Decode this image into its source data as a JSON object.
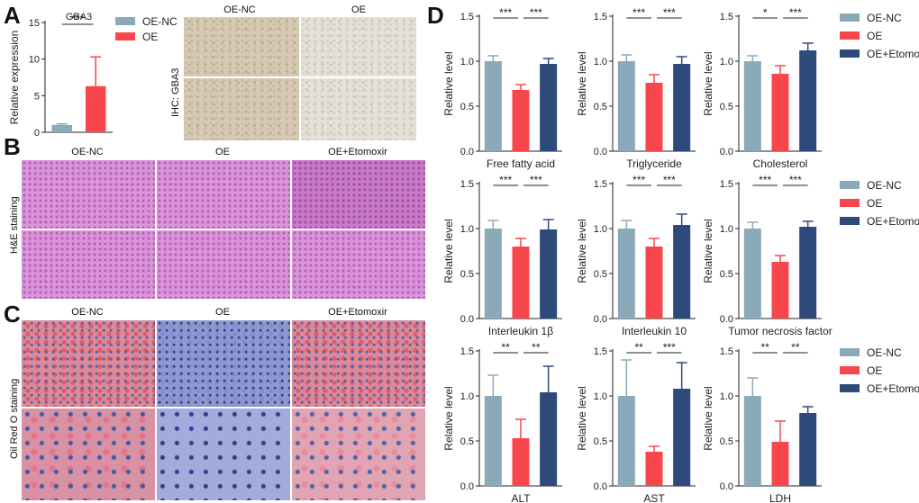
{
  "panels": {
    "A": "A",
    "B": "B",
    "C": "C",
    "D": "D"
  },
  "colors": {
    "oe_nc": "#8aa9b9",
    "oe": "#f7474c",
    "oe_etomoxir": "#2e4a7a"
  },
  "legend": [
    "OE-NC",
    "OE",
    "OE+Etomoxir"
  ],
  "panelA": {
    "ihc_labels": [
      "OE-NC",
      "OE"
    ],
    "ihc_side_label": "IHC: GBA3"
  },
  "panelB": {
    "col_labels": [
      "OE-NC",
      "OE",
      "OE+Etomoxir"
    ],
    "side_label": "H&E staining"
  },
  "panelC": {
    "col_labels": [
      "OE-NC",
      "OE",
      "OE+Etomoxir"
    ],
    "side_label": "Oil Red O staining"
  },
  "chart_data": [
    {
      "id": "A",
      "type": "bar",
      "title": "GBA3",
      "ylabel": "Relative expression",
      "xlabel": "",
      "ylim": [
        0,
        15
      ],
      "yticks": [
        0,
        5,
        10,
        15
      ],
      "categories": [
        "OE-NC",
        "OE"
      ],
      "values": [
        1.0,
        6.3
      ],
      "errors": [
        0.15,
        4.0
      ],
      "significance": [
        {
          "from": 0,
          "to": 1,
          "label": "***"
        }
      ],
      "legend": [
        "OE-NC",
        "OE"
      ],
      "legend_position": "top-right"
    },
    {
      "id": "D1",
      "type": "bar",
      "xlabel": "Free fatty acid",
      "ylabel": "Relative level",
      "ylim": [
        0,
        1.5
      ],
      "yticks": [
        0.0,
        0.5,
        1.0,
        1.5
      ],
      "categories": [
        "OE-NC",
        "OE",
        "OE+Etomoxir"
      ],
      "values": [
        1.0,
        0.68,
        0.97
      ],
      "errors": [
        0.06,
        0.06,
        0.06
      ],
      "significance": [
        {
          "from": 0,
          "to": 1,
          "label": "***"
        },
        {
          "from": 1,
          "to": 2,
          "label": "***"
        }
      ]
    },
    {
      "id": "D2",
      "type": "bar",
      "xlabel": "Triglyceride",
      "ylabel": "Relative level",
      "ylim": [
        0,
        1.5
      ],
      "yticks": [
        0.0,
        0.5,
        1.0,
        1.5
      ],
      "categories": [
        "OE-NC",
        "OE",
        "OE+Etomoxir"
      ],
      "values": [
        1.0,
        0.76,
        0.97
      ],
      "errors": [
        0.07,
        0.09,
        0.08
      ],
      "significance": [
        {
          "from": 0,
          "to": 1,
          "label": "***"
        },
        {
          "from": 1,
          "to": 2,
          "label": "***"
        }
      ]
    },
    {
      "id": "D3",
      "type": "bar",
      "xlabel": "Cholesterol",
      "ylabel": "Relative level",
      "ylim": [
        0,
        1.5
      ],
      "yticks": [
        0.0,
        0.5,
        1.0,
        1.5
      ],
      "categories": [
        "OE-NC",
        "OE",
        "OE+Etomoxir"
      ],
      "values": [
        1.0,
        0.86,
        1.12
      ],
      "errors": [
        0.06,
        0.09,
        0.08
      ],
      "significance": [
        {
          "from": 0,
          "to": 1,
          "label": "*"
        },
        {
          "from": 1,
          "to": 2,
          "label": "***"
        }
      ],
      "legend": [
        "OE-NC",
        "OE",
        "OE+Etomoxir"
      ],
      "legend_position": "right"
    },
    {
      "id": "D4",
      "type": "bar",
      "xlabel": "Interleukin 1β",
      "ylabel": "Relative level",
      "ylim": [
        0,
        1.5
      ],
      "yticks": [
        0.0,
        0.5,
        1.0,
        1.5
      ],
      "categories": [
        "OE-NC",
        "OE",
        "OE+Etomoxir"
      ],
      "values": [
        1.0,
        0.8,
        0.99
      ],
      "errors": [
        0.09,
        0.09,
        0.11
      ],
      "significance": [
        {
          "from": 0,
          "to": 1,
          "label": "***"
        },
        {
          "from": 1,
          "to": 2,
          "label": "***"
        }
      ]
    },
    {
      "id": "D5",
      "type": "bar",
      "xlabel": "Interleukin 10",
      "ylabel": "Relative level",
      "ylim": [
        0,
        1.5
      ],
      "yticks": [
        0.0,
        0.5,
        1.0,
        1.5
      ],
      "categories": [
        "OE-NC",
        "OE",
        "OE+Etomoxir"
      ],
      "values": [
        1.0,
        0.8,
        1.04
      ],
      "errors": [
        0.09,
        0.09,
        0.12
      ],
      "significance": [
        {
          "from": 0,
          "to": 1,
          "label": "***"
        },
        {
          "from": 1,
          "to": 2,
          "label": "***"
        }
      ]
    },
    {
      "id": "D6",
      "type": "bar",
      "xlabel": "Tumor necrosis factor",
      "ylabel": "Relative level",
      "ylim": [
        0,
        1.5
      ],
      "yticks": [
        0.0,
        0.5,
        1.0,
        1.5
      ],
      "categories": [
        "OE-NC",
        "OE",
        "OE+Etomoxir"
      ],
      "values": [
        1.0,
        0.63,
        1.02
      ],
      "errors": [
        0.07,
        0.07,
        0.06
      ],
      "significance": [
        {
          "from": 0,
          "to": 1,
          "label": "***"
        },
        {
          "from": 1,
          "to": 2,
          "label": "***"
        }
      ],
      "legend": [
        "OE-NC",
        "OE",
        "OE+Etomoxir"
      ],
      "legend_position": "right"
    },
    {
      "id": "D7",
      "type": "bar",
      "xlabel": "ALT",
      "ylabel": "Relative level",
      "ylim": [
        0,
        1.5
      ],
      "yticks": [
        0.0,
        0.5,
        1.0,
        1.5
      ],
      "categories": [
        "OE-NC",
        "OE",
        "OE+Etomoxir"
      ],
      "values": [
        1.0,
        0.53,
        1.04
      ],
      "errors": [
        0.23,
        0.21,
        0.29
      ],
      "significance": [
        {
          "from": 0,
          "to": 1,
          "label": "**"
        },
        {
          "from": 1,
          "to": 2,
          "label": "**"
        }
      ]
    },
    {
      "id": "D8",
      "type": "bar",
      "xlabel": "AST",
      "ylabel": "Relative level",
      "ylim": [
        0,
        1.5
      ],
      "yticks": [
        0.0,
        0.5,
        1.0,
        1.5
      ],
      "categories": [
        "OE-NC",
        "OE",
        "OE+Etomoxir"
      ],
      "values": [
        1.0,
        0.38,
        1.08
      ],
      "errors": [
        0.4,
        0.06,
        0.29
      ],
      "significance": [
        {
          "from": 0,
          "to": 1,
          "label": "**"
        },
        {
          "from": 1,
          "to": 2,
          "label": "***"
        }
      ]
    },
    {
      "id": "D9",
      "type": "bar",
      "xlabel": "LDH",
      "ylabel": "Relative level",
      "ylim": [
        0,
        1.5
      ],
      "yticks": [
        0.0,
        0.5,
        1.0,
        1.5
      ],
      "categories": [
        "OE-NC",
        "OE",
        "OE+Etomoxir"
      ],
      "values": [
        1.0,
        0.49,
        0.81
      ],
      "errors": [
        0.2,
        0.23,
        0.07
      ],
      "significance": [
        {
          "from": 0,
          "to": 1,
          "label": "**"
        },
        {
          "from": 1,
          "to": 2,
          "label": "**"
        }
      ],
      "legend": [
        "OE-NC",
        "OE",
        "OE+Etomoxir"
      ],
      "legend_position": "right"
    }
  ]
}
